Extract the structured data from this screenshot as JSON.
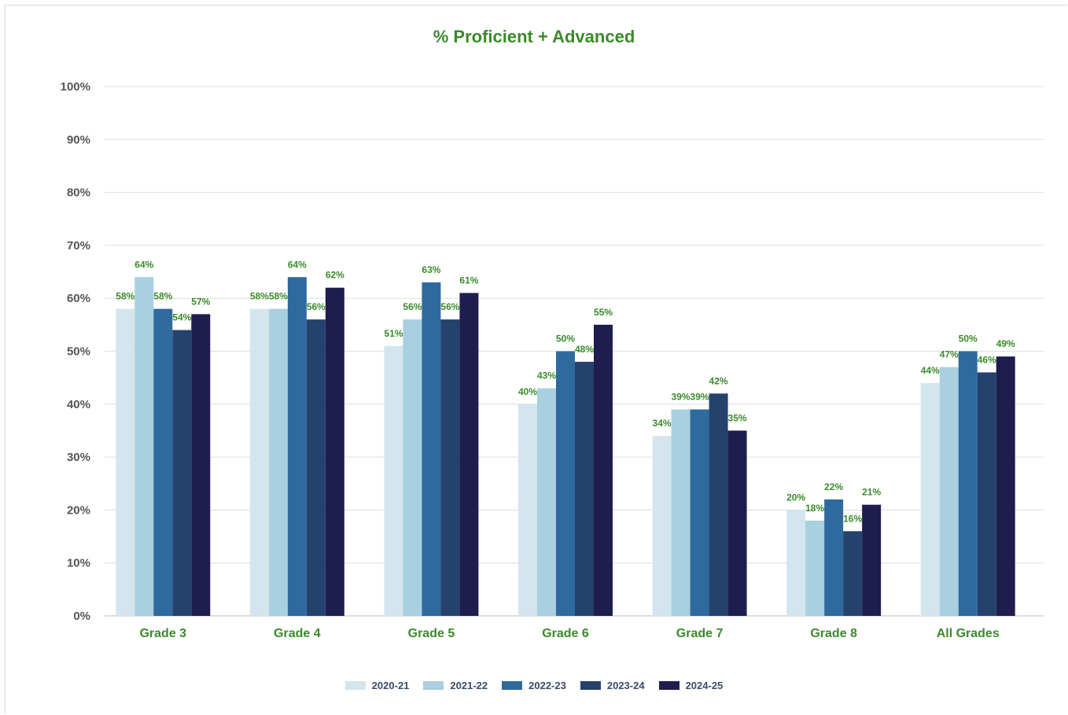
{
  "chart_data": {
    "type": "bar",
    "title": "% Proficient + Advanced",
    "categories": [
      "Grade 3",
      "Grade 4",
      "Grade 5",
      "Grade 6",
      "Grade 7",
      "Grade 8",
      "All Grades"
    ],
    "series": [
      {
        "name": "2020-21",
        "color": "#d3e6ed",
        "values": [
          58,
          58,
          51,
          40,
          34,
          20,
          44
        ],
        "labels": [
          "58%",
          "58%",
          "51%",
          "40%",
          "34%",
          "20%",
          "44%"
        ]
      },
      {
        "name": "2021-22",
        "color": "#a9cfe0",
        "values": [
          64,
          58,
          56,
          43,
          39,
          18,
          47
        ],
        "labels": [
          "64%",
          "58%",
          "56%",
          "43%",
          "39%",
          "18%",
          "47%"
        ]
      },
      {
        "name": "2022-23",
        "color": "#2f6a9e",
        "values": [
          58,
          64,
          63,
          50,
          39,
          22,
          50
        ],
        "labels": [
          "58%",
          "64%",
          "63%",
          "50%",
          "39%",
          "22%",
          "50%"
        ]
      },
      {
        "name": "2023-24",
        "color": "#25426e",
        "values": [
          54,
          56,
          56,
          48,
          42,
          16,
          46
        ],
        "labels": [
          "54%",
          "56%",
          "56%",
          "48%",
          "42%",
          "16%",
          "46%"
        ]
      },
      {
        "name": "2024-25",
        "color": "#1f1d4e",
        "values": [
          57,
          62,
          61,
          55,
          35,
          21,
          49
        ],
        "labels": [
          "57%",
          "62%",
          "61%",
          "55%",
          "35%",
          "21%",
          "49%"
        ]
      }
    ],
    "yticks": [
      "0%",
      "10%",
      "20%",
      "30%",
      "40%",
      "50%",
      "60%",
      "70%",
      "80%",
      "90%",
      "100%"
    ],
    "ylim": [
      0,
      100
    ],
    "grid": true,
    "legend_position": "bottom",
    "xlabel": "",
    "ylabel": ""
  }
}
